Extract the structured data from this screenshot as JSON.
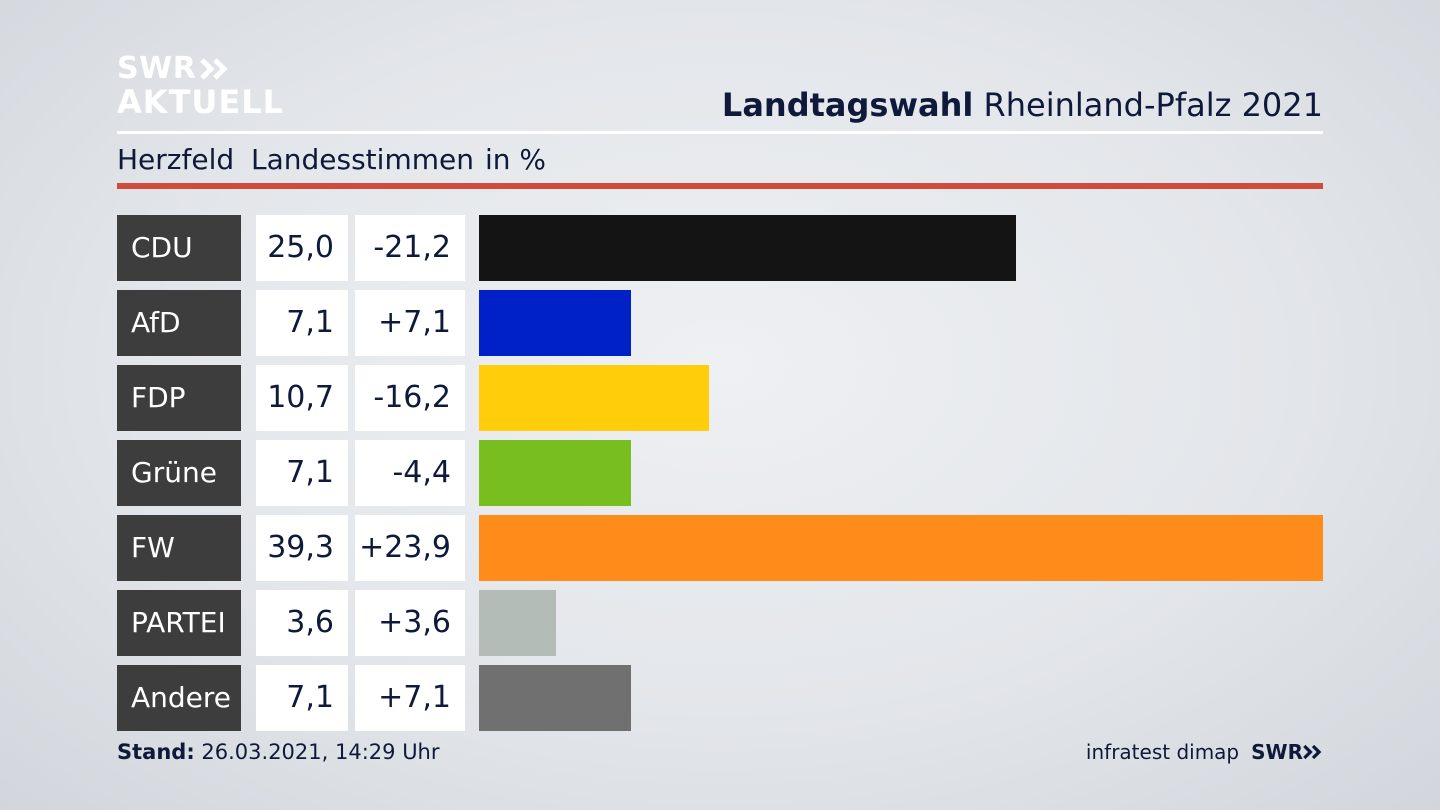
{
  "logo": {
    "line1": "SWR",
    "line2": "AKTUELL"
  },
  "header": {
    "title_bold": "Landtagswahl",
    "title_rest": "Rheinland-Pfalz 2021"
  },
  "subheader": {
    "region": "Herzfeld",
    "metric": "Landesstimmen",
    "unit": "in %"
  },
  "footer": {
    "stand_label": "Stand:",
    "stand_value": "26.03.2021, 14:29 Uhr",
    "source": "infratest dimap",
    "brand": "SWR"
  },
  "colors": {
    "accent_red": "#cf4b3a",
    "label_bg": "#3d3d3d"
  },
  "chart_data": {
    "type": "bar",
    "orientation": "horizontal",
    "categories": [
      "CDU",
      "AfD",
      "FDP",
      "Grüne",
      "FW",
      "PARTEI",
      "Andere"
    ],
    "values": [
      25.0,
      7.1,
      10.7,
      7.1,
      39.3,
      3.6,
      7.1
    ],
    "value_labels": [
      "25,0",
      "7,1",
      "10,7",
      "7,1",
      "39,3",
      "3,6",
      "7,1"
    ],
    "changes": [
      "-21,2",
      "+7,1",
      "-16,2",
      "-4,4",
      "+23,9",
      "+3,6",
      "+7,1"
    ],
    "colors": [
      "#141414",
      "#0021c8",
      "#ffcd0a",
      "#78be1e",
      "#ff8c1a",
      "#b4bcb8",
      "#707070"
    ],
    "xlim": [
      0,
      39.3
    ]
  }
}
